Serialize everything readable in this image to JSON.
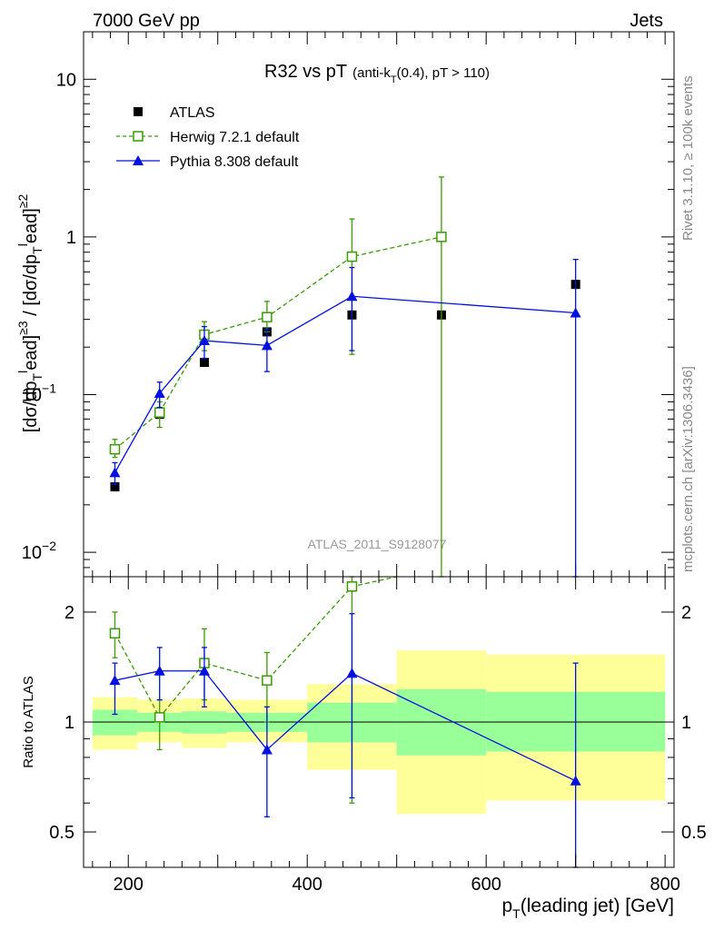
{
  "header": {
    "energy_label": "7000 GeV pp",
    "process_label": "Jets"
  },
  "side": {
    "rivet_label": "Rivet 3.1.10, ≥ 100k events",
    "source_label": "mcplots.cern.ch [arXiv:1306.3436]"
  },
  "chart_data": [
    {
      "type": "line",
      "title_main": "R32 vs pT",
      "title_sub_pre": "(anti-k",
      "title_sub_sub": "T",
      "title_sub_post": "(0.4), pT > 110)",
      "watermark": "ATLAS_2011_S9128077",
      "ylabel": "[dσ/dp_T^lead]^≥3 / [dσ/dp_T^lead]^≥2",
      "yscale": "log",
      "xlim": [
        150,
        810
      ],
      "ylim": [
        0.007,
        20
      ],
      "x_ticks": [
        200,
        400,
        600,
        800
      ],
      "y_ticks": [
        {
          "value": 0.01,
          "base": "10",
          "exp": "−2"
        },
        {
          "value": 0.1,
          "base": "10",
          "exp": "−1"
        },
        {
          "value": 1,
          "base": "1",
          "exp": ""
        },
        {
          "value": 10,
          "base": "10",
          "exp": ""
        }
      ],
      "legend_position": "top-left",
      "series": [
        {
          "name": "ATLAS",
          "color": "#000000",
          "marker": "filled-square",
          "line": "none",
          "x": [
            185,
            235,
            285,
            355,
            450,
            550,
            700
          ],
          "y": [
            0.026,
            0.075,
            0.16,
            0.25,
            0.32,
            0.32,
            0.5
          ]
        },
        {
          "name": "Herwig 7.2.1 default",
          "color": "#3a9a00",
          "marker": "open-square",
          "line": "dashed",
          "x": [
            185,
            235,
            285,
            355,
            450,
            550
          ],
          "y": [
            0.045,
            0.077,
            0.24,
            0.31,
            0.75,
            1.0
          ],
          "err_low": [
            0.04,
            0.062,
            0.19,
            0.25,
            0.18,
            0.001
          ],
          "err_high": [
            0.052,
            0.09,
            0.29,
            0.39,
            1.3,
            2.4
          ]
        },
        {
          "name": "Pythia 8.308 default",
          "color": "#0010dd",
          "marker": "filled-triangle",
          "line": "solid",
          "x": [
            185,
            235,
            285,
            355,
            450,
            700
          ],
          "y": [
            0.032,
            0.102,
            0.22,
            0.205,
            0.42,
            0.33
          ],
          "err_low": [
            0.027,
            0.083,
            0.17,
            0.14,
            0.19,
            0.001
          ],
          "err_high": [
            0.037,
            0.12,
            0.27,
            0.26,
            0.64,
            0.72
          ]
        }
      ]
    },
    {
      "type": "line",
      "ylabel": "Ratio to ATLAS",
      "xlabel_pre": "p",
      "xlabel_sub": "T",
      "xlabel_post": "(leading jet) [GeV]",
      "yscale": "log",
      "xlim": [
        150,
        810
      ],
      "ylim": [
        0.4,
        2.5
      ],
      "y_ticks": [
        0.5,
        1,
        2
      ],
      "reference_line": 1,
      "bands": [
        {
          "x0": 160,
          "x1": 210,
          "inner": [
            0.92,
            1.08
          ],
          "outer": [
            0.84,
            1.17
          ]
        },
        {
          "x0": 210,
          "x1": 260,
          "inner": [
            0.94,
            1.06
          ],
          "outer": [
            0.88,
            1.15
          ]
        },
        {
          "x0": 260,
          "x1": 310,
          "inner": [
            0.93,
            1.07
          ],
          "outer": [
            0.85,
            1.16
          ]
        },
        {
          "x0": 310,
          "x1": 400,
          "inner": [
            0.94,
            1.06
          ],
          "outer": [
            0.88,
            1.15
          ]
        },
        {
          "x0": 400,
          "x1": 500,
          "inner": [
            0.88,
            1.13
          ],
          "outer": [
            0.74,
            1.27
          ]
        },
        {
          "x0": 500,
          "x1": 600,
          "inner": [
            0.81,
            1.23
          ],
          "outer": [
            0.56,
            1.57
          ]
        },
        {
          "x0": 600,
          "x1": 800,
          "inner": [
            0.83,
            1.21
          ],
          "outer": [
            0.61,
            1.53
          ]
        }
      ],
      "series": [
        {
          "name": "Herwig 7.2.1 default",
          "color": "#3a9a00",
          "marker": "open-square",
          "line": "dashed",
          "x": [
            185,
            235,
            285,
            355,
            450,
            500
          ],
          "y": [
            1.75,
            1.03,
            1.45,
            1.3,
            2.35,
            2.6
          ],
          "err_low": [
            1.5,
            0.84,
            1.15,
            1.0,
            0.6,
            null
          ],
          "err_high": [
            2.0,
            1.15,
            1.8,
            1.55,
            2.6,
            null
          ]
        },
        {
          "name": "Pythia 8.308 default",
          "color": "#0010dd",
          "marker": "filled-triangle",
          "line": "solid",
          "x": [
            185,
            235,
            285,
            355,
            450,
            700
          ],
          "y": [
            1.3,
            1.38,
            1.38,
            0.84,
            1.36,
            0.69
          ],
          "err_low": [
            1.05,
            1.15,
            1.1,
            0.55,
            0.62,
            0.3
          ],
          "err_high": [
            1.45,
            1.6,
            1.6,
            1.1,
            1.98,
            1.45
          ]
        }
      ]
    }
  ]
}
